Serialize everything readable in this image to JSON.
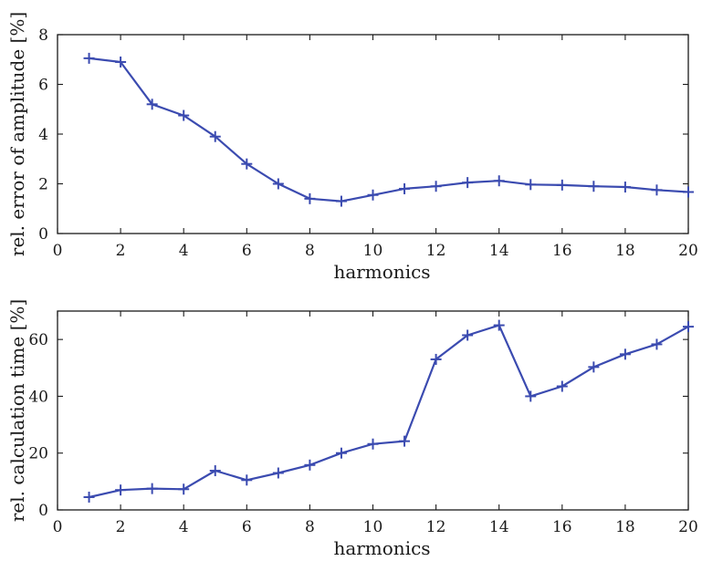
{
  "chart_data": [
    {
      "type": "line",
      "title": "",
      "xlabel": "harmonics",
      "ylabel": "rel. error of amplitude [%]",
      "xlim": [
        0,
        20
      ],
      "ylim": [
        0,
        8
      ],
      "xticks": [
        "0",
        "2",
        "4",
        "6",
        "8",
        "10",
        "12",
        "14",
        "16",
        "18",
        "20"
      ],
      "yticks": [
        "0",
        "2",
        "4",
        "6",
        "8"
      ],
      "grid": false,
      "marker": "plus",
      "color": "#3b4bb0",
      "x": [
        1,
        2,
        3,
        4,
        5,
        6,
        7,
        8,
        9,
        10,
        11,
        12,
        13,
        14,
        15,
        16,
        17,
        18,
        19,
        20
      ],
      "series": [
        {
          "values": [
            7.05,
            6.9,
            5.2,
            4.75,
            3.9,
            2.8,
            2.0,
            1.4,
            1.3,
            1.55,
            1.8,
            1.9,
            2.05,
            2.12,
            1.97,
            1.95,
            1.9,
            1.87,
            1.75,
            1.67
          ]
        }
      ]
    },
    {
      "type": "line",
      "title": "",
      "xlabel": "harmonics",
      "ylabel": "rel. calculation time [%]",
      "xlim": [
        0,
        20
      ],
      "ylim": [
        0,
        70
      ],
      "xticks": [
        "0",
        "2",
        "4",
        "6",
        "8",
        "10",
        "12",
        "14",
        "16",
        "18",
        "20"
      ],
      "yticks": [
        "0",
        "20",
        "40",
        "60"
      ],
      "grid": false,
      "marker": "plus",
      "color": "#3b4bb0",
      "x": [
        1,
        2,
        3,
        4,
        5,
        6,
        7,
        8,
        9,
        10,
        11,
        12,
        13,
        14,
        15,
        16,
        17,
        18,
        19,
        20
      ],
      "series": [
        {
          "values": [
            4.5,
            7.0,
            7.5,
            7.3,
            13.8,
            10.5,
            13.0,
            15.8,
            20.0,
            23.2,
            24.2,
            53.0,
            61.5,
            65.0,
            40.0,
            43.5,
            50.3,
            54.8,
            58.3,
            64.5
          ]
        }
      ]
    }
  ]
}
